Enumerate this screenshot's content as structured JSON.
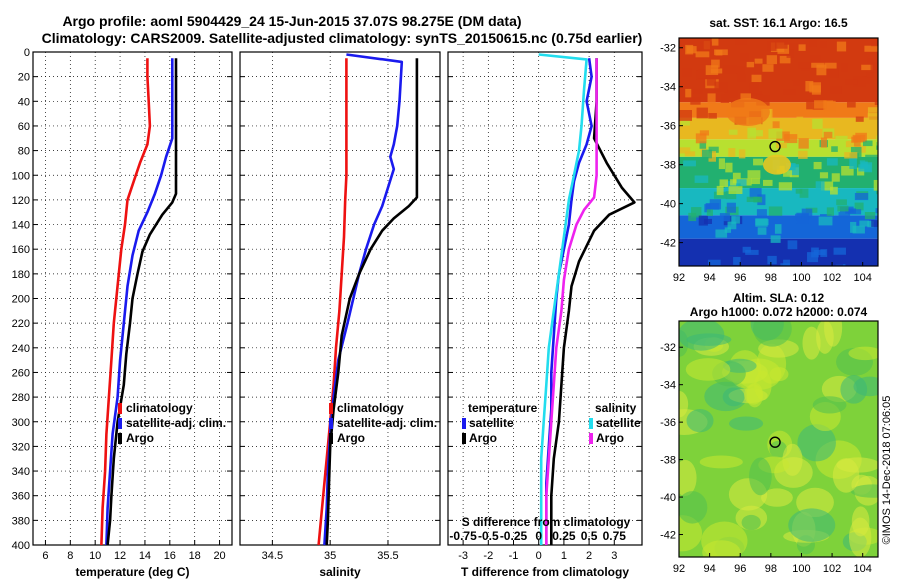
{
  "title_line1": "Argo profile: aoml 5904429_24 15-Jun-2015 37.07S 98.275E (DM data)",
  "title_line2": "Climatology: CARS2009. Satellite-adjusted climatology: synTS_20150615.nc (0.75d earlier)",
  "watermark": "©IMOS 14-Dec-2018 07:06:05",
  "colors": {
    "climatology": "#ee1111",
    "satellite": "#1a1aee",
    "argo": "#000000",
    "sal_satellite": "#22ddee",
    "sal_argo": "#ee22ee"
  },
  "depth_ticks": [
    0,
    20,
    40,
    60,
    80,
    100,
    120,
    140,
    160,
    180,
    200,
    220,
    240,
    260,
    280,
    300,
    320,
    340,
    360,
    380,
    400
  ],
  "chart_data": [
    {
      "type": "line",
      "name": "temperature-profile",
      "xlabel": "temperature (deg C)",
      "ylabel": "depth",
      "xlim": [
        5,
        21
      ],
      "ylim": [
        400,
        0
      ],
      "xticks": [
        6,
        8,
        10,
        12,
        14,
        16,
        18,
        20
      ],
      "grid": true,
      "legend": [
        "climatology",
        "satellite-adj. clim.",
        "Argo"
      ],
      "series": [
        {
          "name": "climatology",
          "color_key": "climatology",
          "points": [
            [
              14.2,
              5
            ],
            [
              14.2,
              20
            ],
            [
              14.3,
              40
            ],
            [
              14.4,
              60
            ],
            [
              14.2,
              75
            ],
            [
              13.6,
              90
            ],
            [
              13.1,
              105
            ],
            [
              12.6,
              120
            ],
            [
              12.4,
              140
            ],
            [
              12.1,
              160
            ],
            [
              11.9,
              180
            ],
            [
              11.7,
              200
            ],
            [
              11.5,
              220
            ],
            [
              11.3,
              250
            ],
            [
              11.1,
              280
            ],
            [
              10.9,
              310
            ],
            [
              10.8,
              340
            ],
            [
              10.6,
              370
            ],
            [
              10.5,
              400
            ]
          ]
        },
        {
          "name": "satellite-adj. clim.",
          "color_key": "satellite",
          "points": [
            [
              16.2,
              5
            ],
            [
              16.2,
              30
            ],
            [
              16.2,
              50
            ],
            [
              16.2,
              70
            ],
            [
              15.7,
              85
            ],
            [
              15.3,
              100
            ],
            [
              14.8,
              115
            ],
            [
              14.2,
              130
            ],
            [
              13.5,
              145
            ],
            [
              13.0,
              165
            ],
            [
              12.6,
              190
            ],
            [
              12.3,
              220
            ],
            [
              12.0,
              250
            ],
            [
              11.8,
              280
            ],
            [
              11.4,
              310
            ],
            [
              11.2,
              340
            ],
            [
              11.0,
              370
            ],
            [
              10.9,
              400
            ]
          ]
        },
        {
          "name": "Argo",
          "color_key": "argo",
          "points": [
            [
              16.5,
              5
            ],
            [
              16.5,
              40
            ],
            [
              16.5,
              80
            ],
            [
              16.5,
              115
            ],
            [
              16.2,
              122
            ],
            [
              15.4,
              132
            ],
            [
              14.4,
              148
            ],
            [
              13.8,
              162
            ],
            [
              13.4,
              180
            ],
            [
              13.0,
              200
            ],
            [
              12.8,
              220
            ],
            [
              12.5,
              245
            ],
            [
              12.3,
              270
            ],
            [
              11.8,
              300
            ],
            [
              11.5,
              330
            ],
            [
              11.3,
              360
            ],
            [
              11.2,
              380
            ],
            [
              11.0,
              400
            ]
          ]
        }
      ]
    },
    {
      "type": "line",
      "name": "salinity-profile",
      "xlabel": "salinity",
      "ylabel": "depth",
      "xlim": [
        34.22,
        35.95
      ],
      "ylim": [
        400,
        0
      ],
      "xticks": [
        34.5,
        35,
        35.5
      ],
      "grid": true,
      "legend": [
        "climatology",
        "satellite-adj. clim.",
        "Argo"
      ],
      "series": [
        {
          "name": "climatology",
          "color_key": "climatology",
          "points": [
            [
              35.14,
              5
            ],
            [
              35.14,
              40
            ],
            [
              35.14,
              80
            ],
            [
              35.14,
              100
            ],
            [
              35.13,
              120
            ],
            [
              35.12,
              150
            ],
            [
              35.1,
              180
            ],
            [
              35.08,
              210
            ],
            [
              35.05,
              240
            ],
            [
              35.03,
              270
            ],
            [
              35.0,
              300
            ],
            [
              34.97,
              330
            ],
            [
              34.94,
              360
            ],
            [
              34.9,
              400
            ]
          ]
        },
        {
          "name": "satellite-adj. clim.",
          "color_key": "satellite",
          "points": [
            [
              35.14,
              2
            ],
            [
              35.62,
              8
            ],
            [
              35.6,
              40
            ],
            [
              35.58,
              60
            ],
            [
              35.55,
              75
            ],
            [
              35.52,
              85
            ],
            [
              35.55,
              95
            ],
            [
              35.5,
              110
            ],
            [
              35.45,
              125
            ],
            [
              35.38,
              140
            ],
            [
              35.31,
              160
            ],
            [
              35.25,
              180
            ],
            [
              35.15,
              220
            ],
            [
              35.07,
              250
            ],
            [
              35.03,
              280
            ],
            [
              35.0,
              310
            ],
            [
              34.98,
              340
            ],
            [
              34.97,
              370
            ],
            [
              34.95,
              400
            ]
          ]
        },
        {
          "name": "Argo",
          "color_key": "argo",
          "points": [
            [
              35.75,
              5
            ],
            [
              35.75,
              50
            ],
            [
              35.75,
              100
            ],
            [
              35.75,
              118
            ],
            [
              35.68,
              125
            ],
            [
              35.55,
              135
            ],
            [
              35.45,
              145
            ],
            [
              35.35,
              160
            ],
            [
              35.25,
              180
            ],
            [
              35.17,
              200
            ],
            [
              35.1,
              230
            ],
            [
              35.07,
              260
            ],
            [
              35.03,
              290
            ],
            [
              35.0,
              320
            ],
            [
              34.99,
              350
            ],
            [
              34.98,
              380
            ],
            [
              34.97,
              400
            ]
          ]
        }
      ]
    },
    {
      "type": "line",
      "name": "difference-profile",
      "xlabel": "T difference from climatology",
      "xlabel2": "S difference from climatology",
      "ylabel": "depth",
      "xlim": [
        -3.6,
        4.1
      ],
      "ylim": [
        400,
        0
      ],
      "xticks": [
        -3,
        -2,
        -1,
        0,
        1,
        2,
        3
      ],
      "s_xtick_labels": [
        "-0.75",
        "-0.5",
        "-0.25",
        "0",
        "0.25",
        "0.5",
        "0.75"
      ],
      "grid": true,
      "legend_t_title": "temperature",
      "legend_s_title": "salinity",
      "legend_items": [
        "satellite",
        "Argo"
      ],
      "series": [
        {
          "name": "T satellite",
          "color_key": "satellite",
          "points": [
            [
              2.0,
              5
            ],
            [
              2.1,
              20
            ],
            [
              1.9,
              40
            ],
            [
              2.1,
              60
            ],
            [
              1.9,
              75
            ],
            [
              1.6,
              90
            ],
            [
              1.4,
              105
            ],
            [
              1.3,
              120
            ],
            [
              1.2,
              140
            ],
            [
              1.0,
              160
            ],
            [
              0.8,
              180
            ],
            [
              0.7,
              200
            ],
            [
              0.6,
              230
            ],
            [
              0.5,
              260
            ],
            [
              0.5,
              290
            ],
            [
              0.4,
              320
            ],
            [
              0.3,
              350
            ],
            [
              0.3,
              400
            ]
          ]
        },
        {
          "name": "T Argo",
          "color_key": "argo",
          "points": [
            [
              2.3,
              5
            ],
            [
              2.3,
              40
            ],
            [
              2.2,
              70
            ],
            [
              2.7,
              90
            ],
            [
              3.3,
              110
            ],
            [
              3.8,
              122
            ],
            [
              2.8,
              132
            ],
            [
              2.2,
              145
            ],
            [
              1.6,
              170
            ],
            [
              1.3,
              190
            ],
            [
              1.2,
              210
            ],
            [
              1.0,
              240
            ],
            [
              0.9,
              270
            ],
            [
              0.8,
              300
            ],
            [
              0.6,
              330
            ],
            [
              0.5,
              360
            ],
            [
              0.5,
              400
            ]
          ]
        },
        {
          "name": "S satellite",
          "color_key": "sal_satellite",
          "points": [
            [
              0.0,
              2
            ],
            [
              1.9,
              6
            ],
            [
              1.8,
              30
            ],
            [
              1.7,
              60
            ],
            [
              1.6,
              80
            ],
            [
              1.4,
              100
            ],
            [
              1.2,
              120
            ],
            [
              1.0,
              150
            ],
            [
              0.8,
              180
            ],
            [
              0.6,
              210
            ],
            [
              0.4,
              240
            ],
            [
              0.3,
              270
            ],
            [
              0.2,
              300
            ],
            [
              0.1,
              330
            ],
            [
              0.1,
              370
            ],
            [
              0.1,
              400
            ]
          ]
        },
        {
          "name": "S Argo",
          "color_key": "sal_argo",
          "points": [
            [
              2.3,
              5
            ],
            [
              2.3,
              40
            ],
            [
              2.3,
              80
            ],
            [
              2.3,
              100
            ],
            [
              2.2,
              118
            ],
            [
              1.8,
              128
            ],
            [
              1.5,
              140
            ],
            [
              1.2,
              160
            ],
            [
              1.0,
              185
            ],
            [
              0.9,
              210
            ],
            [
              0.7,
              240
            ],
            [
              0.6,
              270
            ],
            [
              0.5,
              300
            ],
            [
              0.4,
              330
            ],
            [
              0.3,
              360
            ],
            [
              0.3,
              400
            ]
          ]
        }
      ]
    },
    {
      "type": "heatmap",
      "name": "sst-map",
      "title": "sat. SST: 16.1 Argo: 16.5",
      "xlim": [
        92,
        105
      ],
      "ylim": [
        -43.2,
        -31.5
      ],
      "xticks": [
        92,
        94,
        96,
        98,
        100,
        102,
        104
      ],
      "yticks": [
        -32,
        -34,
        -36,
        -38,
        -40,
        -42
      ],
      "marker": [
        98.275,
        -37.07
      ],
      "bands": [
        {
          "from": -31.5,
          "to": -34.8,
          "color": "#d23a10"
        },
        {
          "from": -34.8,
          "to": -35.6,
          "color": "#f07a18"
        },
        {
          "from": -35.6,
          "to": -36.7,
          "color": "#e8b820"
        },
        {
          "from": -36.7,
          "to": -37.6,
          "color": "#b8e030"
        },
        {
          "from": -37.6,
          "to": -39.2,
          "color": "#22b070"
        },
        {
          "from": -39.2,
          "to": -40.6,
          "color": "#18b8c0"
        },
        {
          "from": -40.6,
          "to": -41.8,
          "color": "#1466d8"
        },
        {
          "from": -41.8,
          "to": -43.2,
          "color": "#1430b0"
        }
      ]
    },
    {
      "type": "heatmap",
      "name": "sla-map",
      "title": "Altim. SLA: 0.12",
      "subtitle": "Argo h1000: 0.072 h2000: 0.074",
      "xlim": [
        92,
        105
      ],
      "ylim": [
        -43.2,
        -30.6
      ],
      "xticks": [
        92,
        94,
        96,
        98,
        100,
        102,
        104
      ],
      "yticks": [
        -32,
        -34,
        -36,
        -38,
        -40,
        -42
      ],
      "marker": [
        98.275,
        -37.07
      ],
      "base_color": "#7ed23a",
      "blob_colors": [
        "#c8e830",
        "#50c050",
        "#d8ea40",
        "#3cb878"
      ]
    }
  ]
}
